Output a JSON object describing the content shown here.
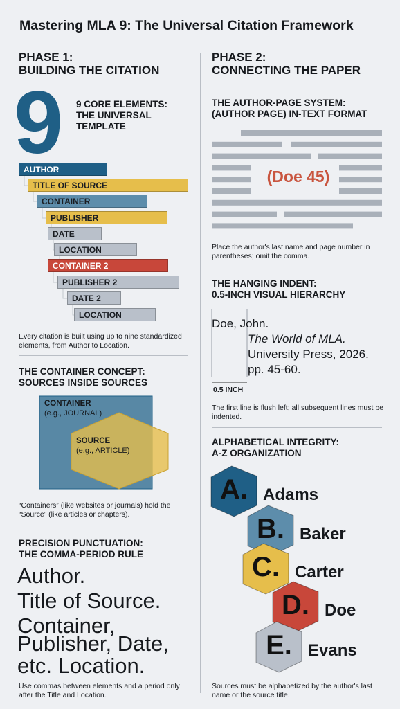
{
  "title": "Mastering MLA 9: The Universal Citation Framework",
  "phase1": {
    "heading": [
      "PHASE 1:",
      "BUILDING THE CITATION"
    ],
    "core": {
      "numeral": "9",
      "heading": [
        "9 CORE ELEMENTS:",
        "THE UNIVERSAL",
        "TEMPLATE"
      ]
    },
    "elements": [
      {
        "label": "AUTHOR",
        "color": "#1f5f86"
      },
      {
        "label": "TITLE OF SOURCE",
        "color": "#e6be4b"
      },
      {
        "label": "CONTAINER",
        "color": "#5d8dab"
      },
      {
        "label": "PUBLISHER",
        "color": "#e6be4b"
      },
      {
        "label": "DATE",
        "color": "#b9c0ca"
      },
      {
        "label": "LOCATION",
        "color": "#b9c0ca"
      },
      {
        "label": "CONTAINER 2",
        "color": "#c8473a"
      },
      {
        "label": "PUBLISHER 2",
        "color": "#b9c0ca"
      },
      {
        "label": "DATE 2",
        "color": "#b9c0ca"
      },
      {
        "label": "LOCATION",
        "color": "#b9c0ca"
      }
    ],
    "elements_caption": "Every citation is built using up to nine standardized elements, from Author to Location.",
    "container": {
      "heading": [
        "THE CONTAINER CONCEPT:",
        "SOURCES INSIDE SOURCES"
      ],
      "outer": "CONTAINER",
      "outer_example": "(e.g., JOURNAL)",
      "inner": "SOURCE",
      "inner_example": "(e.g., ARTICLE)",
      "caption": "“Containers” (like websites or journals) hold the “Source” (like articles or chapters)."
    },
    "punctuation": {
      "heading": [
        "PRECISION PUNCTUATION:",
        "THE COMMA-PERIOD RULE"
      ],
      "lines": [
        "Author.",
        "Title of Source.",
        "Container,",
        "Publisher, Date,",
        "etc. Location."
      ],
      "caption": "Use commas between elements and a period only after the Title and Location."
    }
  },
  "phase2": {
    "heading": [
      "PHASE 2:",
      "CONNECTING THE PAPER"
    ],
    "author_page": {
      "heading": [
        "THE AUTHOR-PAGE SYSTEM:",
        "(AUTHOR PAGE) IN-TEXT FORMAT"
      ],
      "example": "(Doe 45)",
      "caption": "Place the author's last name and page number in parentheses; omit the comma."
    },
    "hanging_indent": {
      "heading": [
        "THE HANGING INDENT:",
        "0.5-INCH VISUAL HIERARCHY"
      ],
      "lines": [
        "Doe, John.",
        "The World of MLA.",
        "University Press, 2026.",
        "pp. 45-60."
      ],
      "measure": "0.5 INCH",
      "caption": "The first line is flush left; all subsequent lines must be indented."
    },
    "alphabetical": {
      "heading": [
        "ALPHABETICAL INTEGRITY:",
        "A-Z ORGANIZATION"
      ],
      "entries": [
        {
          "letter": "A.",
          "name": "Adams",
          "color": "#1f5f86"
        },
        {
          "letter": "B.",
          "name": "Baker",
          "color": "#5d8dab"
        },
        {
          "letter": "C.",
          "name": "Carter",
          "color": "#e6be4b"
        },
        {
          "letter": "D.",
          "name": "Doe",
          "color": "#c8473a"
        },
        {
          "letter": "E.",
          "name": "Evans",
          "color": "#b9c0ca"
        }
      ],
      "caption": "Sources must be alphabetized by the author's last name or the source title."
    }
  }
}
